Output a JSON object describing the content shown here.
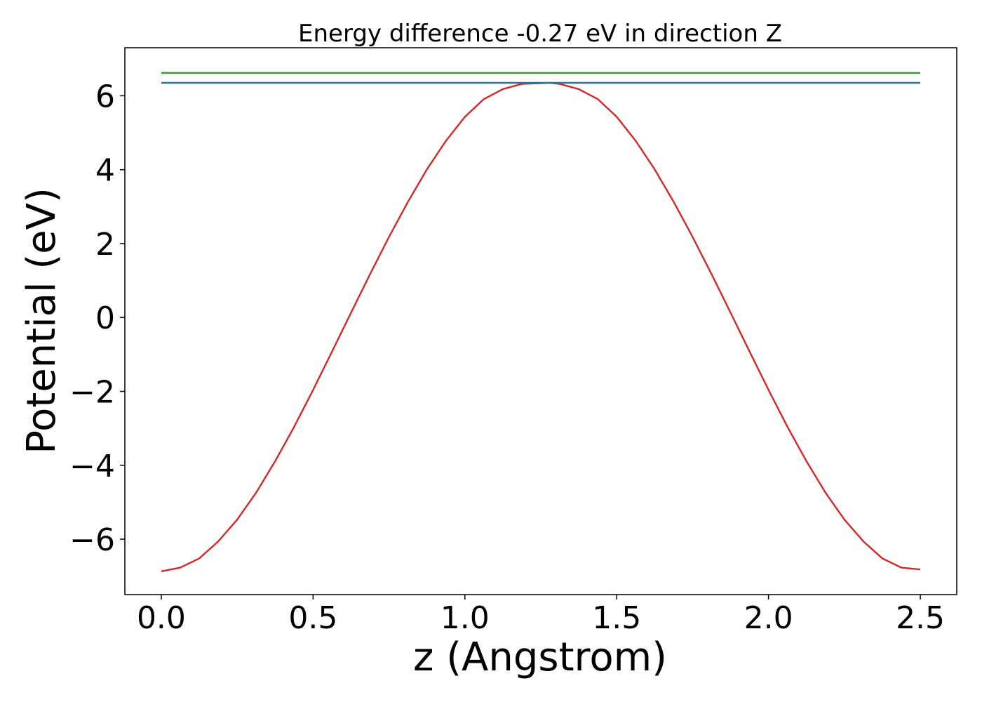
{
  "chart_data": {
    "type": "line",
    "title": "Energy difference -0.27 eV in direction Z",
    "xlabel": "z (Angstrom)",
    "ylabel": "Potential (eV)",
    "xlim": [
      -0.12,
      2.62
    ],
    "ylim": [
      -7.5,
      7.3
    ],
    "x_ticks": [
      0.0,
      0.5,
      1.0,
      1.5,
      2.0,
      2.5
    ],
    "x_tick_labels": [
      "0.0",
      "0.5",
      "1.0",
      "1.5",
      "2.0",
      "2.5"
    ],
    "y_ticks": [
      -6,
      -4,
      -2,
      0,
      2,
      4,
      6
    ],
    "y_tick_labels": [
      "−6",
      "−4",
      "−2",
      "0",
      "2",
      "4",
      "6"
    ],
    "grid": false,
    "series": [
      {
        "color": "#d62728",
        "x": [
          0.0,
          0.0625,
          0.125,
          0.1875,
          0.25,
          0.3125,
          0.375,
          0.4375,
          0.5,
          0.5625,
          0.625,
          0.6875,
          0.75,
          0.8125,
          0.875,
          0.9375,
          1.0,
          1.0625,
          1.125,
          1.1875,
          1.25,
          1.28,
          1.3125,
          1.375,
          1.4375,
          1.5,
          1.5625,
          1.625,
          1.6875,
          1.75,
          1.8125,
          1.875,
          1.9375,
          2.0,
          2.0625,
          2.125,
          2.1875,
          2.25,
          2.3125,
          2.375,
          2.4375,
          2.5
        ],
        "y": [
          -6.87,
          -6.77,
          -6.52,
          -6.06,
          -5.47,
          -4.74,
          -3.89,
          -2.96,
          -1.96,
          -0.92,
          0.13,
          1.17,
          2.18,
          3.13,
          4.01,
          4.78,
          5.43,
          5.91,
          6.18,
          6.32,
          6.34,
          6.35,
          6.32,
          6.18,
          5.91,
          5.43,
          4.78,
          4.01,
          3.13,
          2.18,
          1.17,
          0.13,
          -0.92,
          -1.96,
          -2.96,
          -3.89,
          -4.74,
          -5.47,
          -6.06,
          -6.52,
          -6.77,
          -6.82
        ]
      },
      {
        "color": "#1f77b4",
        "x": [
          0.0,
          2.5
        ],
        "y": [
          6.35,
          6.35
        ]
      },
      {
        "color": "#2ca02c",
        "x": [
          0.0,
          2.5
        ],
        "y": [
          6.62,
          6.62
        ]
      }
    ]
  }
}
